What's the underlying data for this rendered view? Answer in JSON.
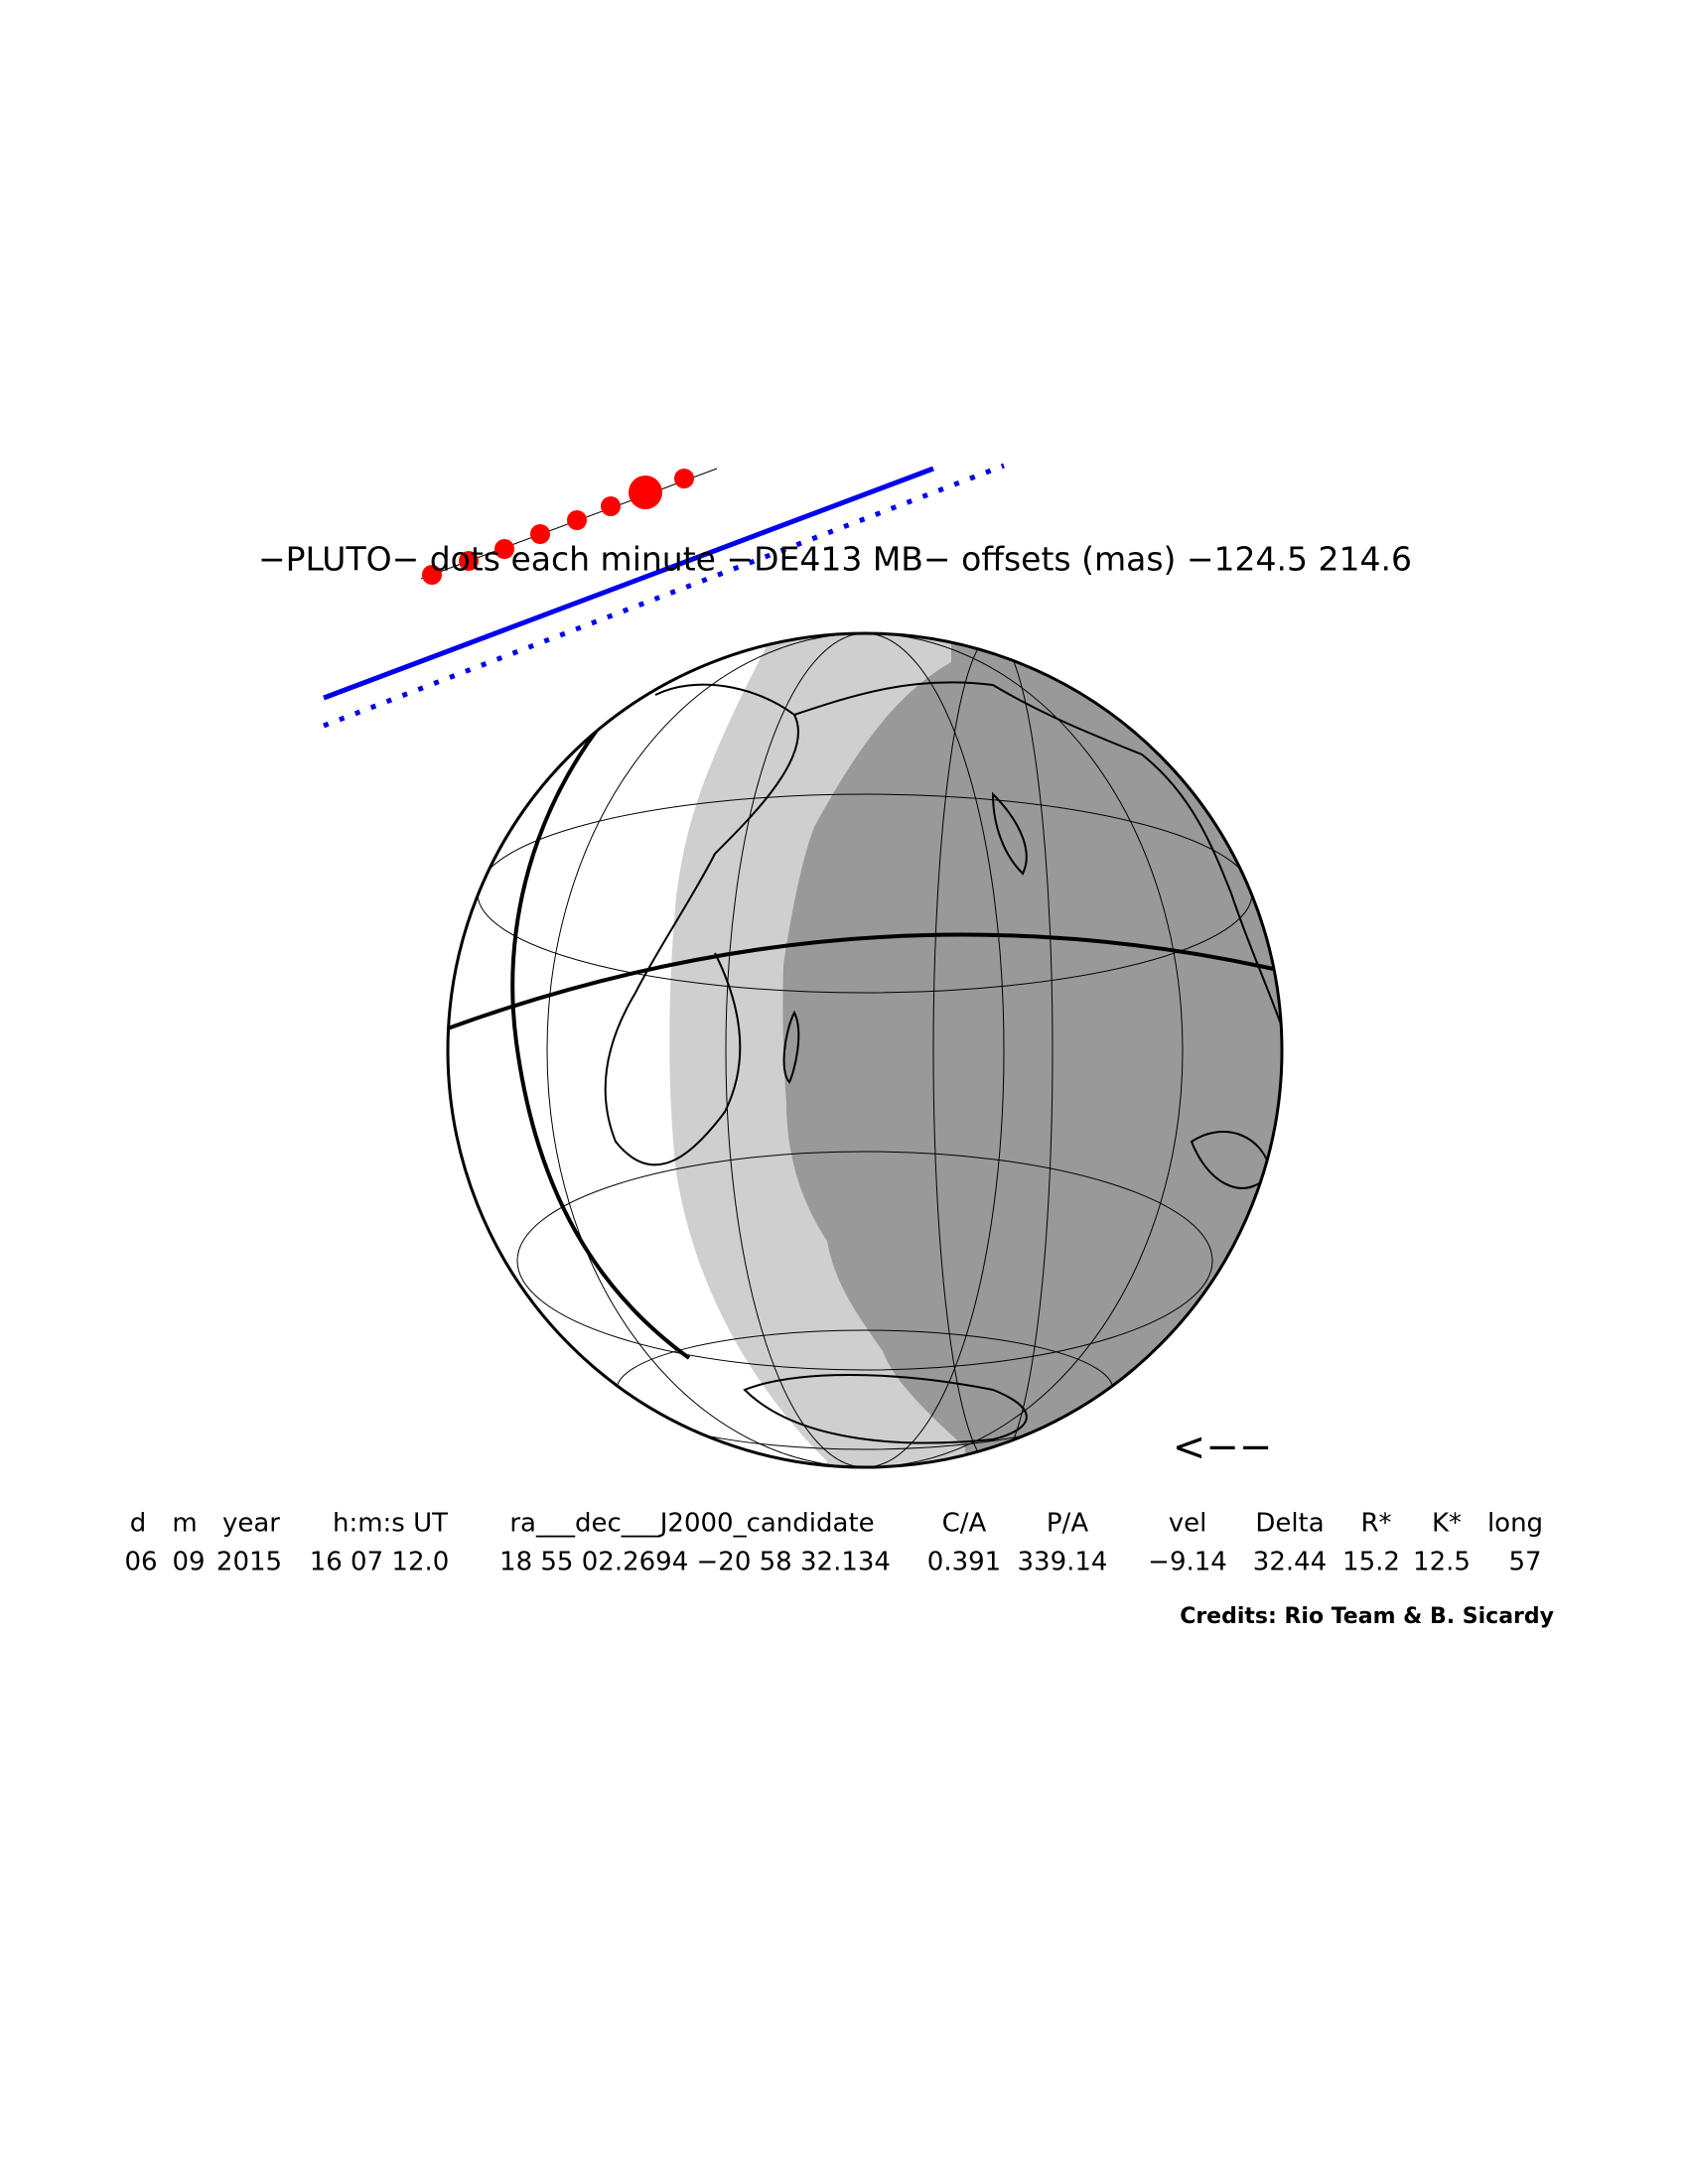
{
  "title": "−PLUTO− dots each minute −DE413 MB− offsets (mas) −124.5   214.6",
  "arrow": "<−−",
  "table": {
    "headers": [
      "d",
      "m",
      "year",
      "h:m:s UT",
      "ra___dec___J2000_candidate",
      "C/A",
      "P/A",
      "vel",
      "Delta",
      "R*",
      "K*",
      "long"
    ],
    "rows": [
      [
        "06",
        "09",
        "2015",
        "16 07 12.0",
        "18 55 02.2694 −20 58 32.134",
        "0.391",
        "339.14",
        "−9.14",
        "32.44",
        "15.2",
        "12.5",
        "57"
      ]
    ]
  },
  "credits": "Credits: Rio Team & B. Sicardy"
}
